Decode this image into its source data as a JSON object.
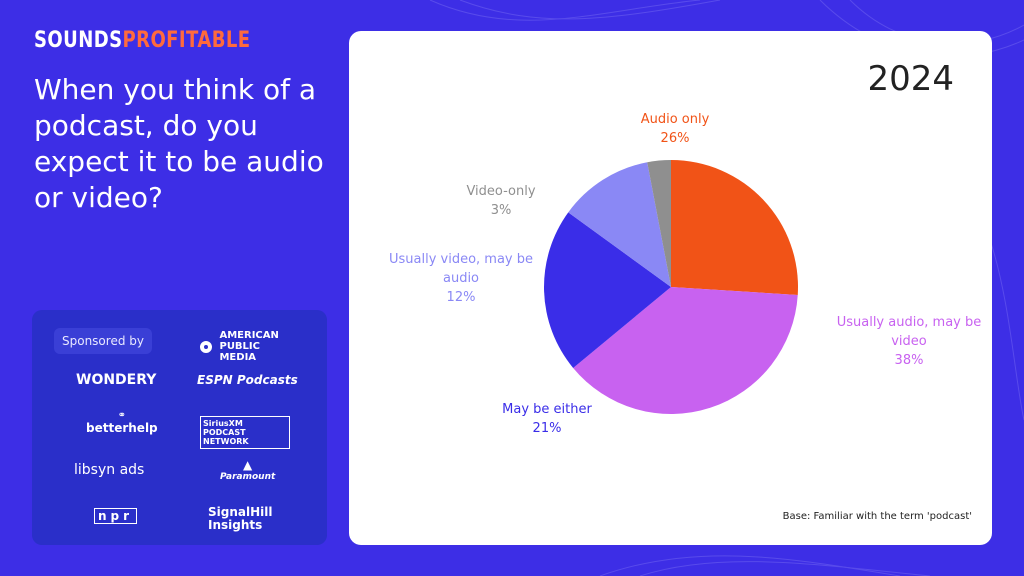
{
  "brand": {
    "part1": "SOUNDS",
    "part2": "PROFITABLE"
  },
  "question": "When you think of a podcast, do you expect it to be audio or video?",
  "sponsors": {
    "label": "Sponsored by",
    "logos": [
      "AMERICAN PUBLIC MEDIA",
      "WONDERY",
      "ESPN Podcasts",
      "betterhelp",
      "SiriusXM PODCAST NETWORK",
      "libsyn ads",
      "Paramount",
      "npr",
      "SignalHill Insights"
    ]
  },
  "chart_data": {
    "type": "pie",
    "title": "2024",
    "footnote": "Base: Familiar with the term 'podcast'",
    "slices": [
      {
        "label": "Audio only",
        "value": 26,
        "display": "26%",
        "color": "#f15317"
      },
      {
        "label": "Usually audio, may be video",
        "value": 38,
        "display": "38%",
        "color": "#c862f0"
      },
      {
        "label": "May be either",
        "value": 21,
        "display": "21%",
        "color": "#3a2de8"
      },
      {
        "label": "Usually video, may be audio",
        "value": 12,
        "display": "12%",
        "color": "#8a88f5"
      },
      {
        "label": "Video-only",
        "value": 3,
        "display": "3%",
        "color": "#8f8f8f"
      }
    ]
  }
}
